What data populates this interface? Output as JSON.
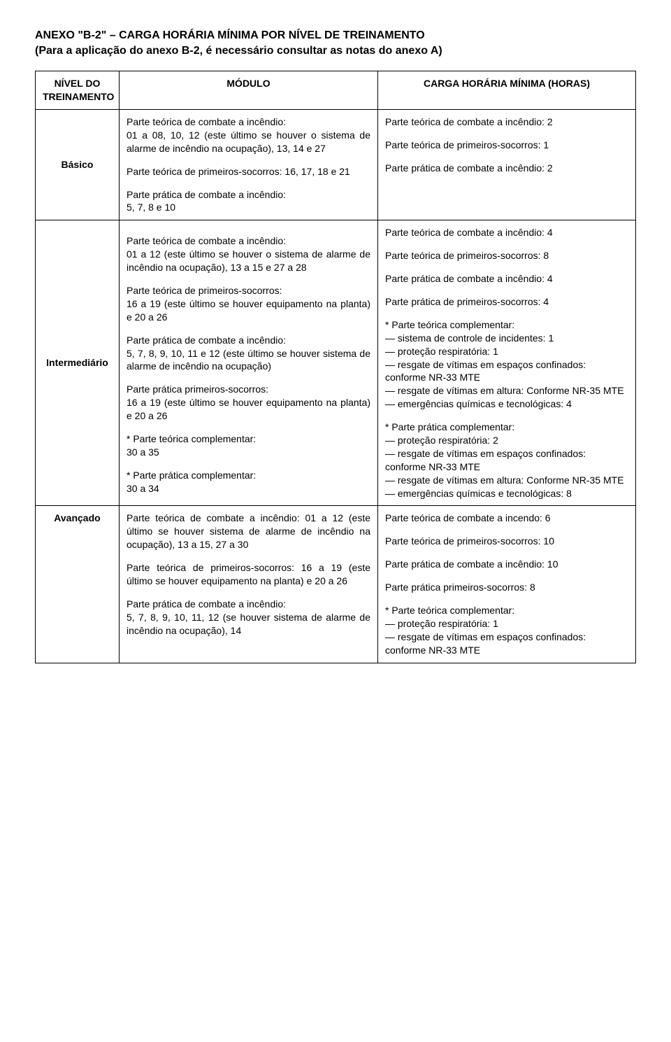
{
  "title_line1": "ANEXO \"B-2\" – CARGA HORÁRIA MÍNIMA POR NÍVEL DE TREINAMENTO",
  "title_line2": "(Para a aplicação do anexo B-2, é necessário consultar as notas do anexo A)",
  "headers": {
    "nivel": "NÍVEL DO TREINAMENTO",
    "modulo": "MÓDULO",
    "carga": "CARGA HORÁRIA MÍNIMA (HORAS)"
  },
  "rows": {
    "basico": {
      "nivel": "Básico",
      "modulo": {
        "p1a": "Parte teórica de combate a incêndio:",
        "p1b": "01 a 08, 10, 12 (este último se houver o sistema de alarme de incêndio na ocupação), 13, 14 e 27",
        "p2": "Parte teórica de primeiros-socorros: 16, 17, 18 e 21",
        "p3a": "Parte prática de combate a incêndio:",
        "p3b": "5, 7, 8 e 10"
      },
      "carga": {
        "c1": "Parte teórica de combate a incêndio: 2",
        "c2": "Parte teórica de primeiros-socorros: 1",
        "c3": "Parte prática de combate a incêndio: 2"
      }
    },
    "intermediario": {
      "nivel": "Intermediário",
      "modulo": {
        "p1a": "Parte teórica de combate a incêndio:",
        "p1b": "01 a 12 (este último se houver o sistema de alarme de incêndio na ocupação), 13 a 15 e 27 a 28",
        "p2a": "Parte teórica de primeiros-socorros:",
        "p2b": "16 a 19 (este último se houver equipamento na planta) e 20 a 26",
        "p3a": "Parte prática de combate a incêndio:",
        "p3b": "5, 7, 8, 9, 10, 11 e 12 (este último se houver sistema de alarme de incêndio na ocupação)",
        "p4a": "Parte prática primeiros-socorros:",
        "p4b": "16 a 19 (este último se houver equipamento na planta) e 20 a 26",
        "p5a": "* Parte teórica complementar:",
        "p5b": "30 a 35",
        "p6a": "* Parte prática complementar:",
        "p6b": "30 a 34"
      },
      "carga": {
        "c1": "Parte teórica de combate a incêndio: 4",
        "c2": "Parte teórica de primeiros-socorros: 8",
        "c3": "Parte prática de combate a incêndio: 4",
        "c4": "Parte prática de primeiros-socorros: 4",
        "c5": "* Parte teórica complementar:",
        "c5a": "—      sistema de controle de incidentes: 1",
        "c5b": "—      proteção respiratória: 1",
        "c5c": "—      resgate de vítimas em espaços confinados: conforme NR-33 MTE",
        "c5d": "—      resgate de vítimas em altura: Conforme NR-35 MTE",
        "c5e": "—      emergências químicas e tecnológicas: 4",
        "c6": "* Parte prática complementar:",
        "c6a": "—      proteção respiratória: 2",
        "c6b": "—      resgate de vítimas em espaços confinados: conforme NR-33 MTE",
        "c6c": "—      resgate de vítimas em altura: Conforme NR-35 MTE",
        "c6d": "—      emergências químicas e tecnológicas: 8"
      }
    },
    "avancado": {
      "nivel": "Avançado",
      "modulo": {
        "p1": "Parte teórica de combate a incêndio: 01 a 12 (este último se houver sistema de alarme de incêndio na ocupação), 13 a 15, 27 a 30",
        "p2": "Parte teórica de primeiros-socorros: 16 a 19 (este último se houver equipamento na planta) e 20 a 26",
        "p3a": "Parte prática de combate a incêndio:",
        "p3b": "5, 7, 8, 9, 10, 11, 12 (se houver sistema de alarme de incêndio na ocupação), 14"
      },
      "carga": {
        "c1": "Parte teórica de combate a incendo: 6",
        "c2": "Parte teórica de primeiros-socorros: 10",
        "c3": "Parte prática de combate a incêndio: 10",
        "c4": "Parte prática primeiros-socorros: 8",
        "c5": "* Parte teórica complementar:",
        "c5a": "—      proteção respiratória: 1",
        "c5b": "—      resgate de vítimas em espaços confinados: conforme NR-33 MTE"
      }
    }
  }
}
